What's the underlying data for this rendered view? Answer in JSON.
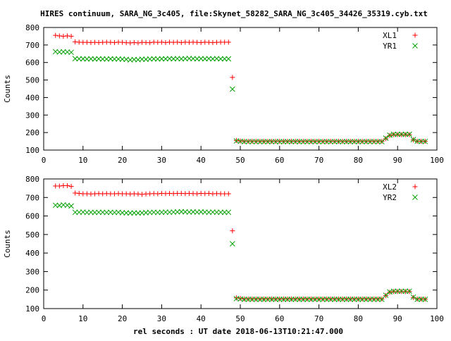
{
  "page": {
    "title": "HIRES continuum, SARA_NG_3c405, file:Skynet_58282_SARA_NG_3c405_34426_35319.cyb.txt",
    "xlabel": "rel seconds : UT date 2018-06-13T10:21:47.000"
  },
  "colors": {
    "red": "#ff0000",
    "green": "#00a000",
    "axis": "#000000"
  },
  "chart_data": [
    {
      "type": "scatter",
      "ylabel": "Counts",
      "xlim": [
        0,
        100
      ],
      "ylim": [
        100,
        800
      ],
      "xticks": [
        0,
        10,
        20,
        30,
        40,
        50,
        60,
        70,
        80,
        90,
        100
      ],
      "yticks": [
        100,
        200,
        300,
        400,
        500,
        600,
        700,
        800
      ],
      "legend_position": "top-right",
      "series": [
        {
          "name": "XL1",
          "marker": "plus",
          "color": "#ff0000",
          "x": [
            3,
            4,
            5,
            6,
            7,
            8,
            9,
            10,
            11,
            12,
            13,
            14,
            15,
            16,
            17,
            18,
            19,
            20,
            21,
            22,
            23,
            24,
            25,
            26,
            27,
            28,
            29,
            30,
            31,
            32,
            33,
            34,
            35,
            36,
            37,
            38,
            39,
            40,
            41,
            42,
            43,
            44,
            45,
            46,
            47,
            48,
            49,
            50,
            51,
            52,
            53,
            54,
            55,
            56,
            57,
            58,
            59,
            60,
            61,
            62,
            63,
            64,
            65,
            66,
            67,
            68,
            69,
            70,
            71,
            72,
            73,
            74,
            75,
            76,
            77,
            78,
            79,
            80,
            81,
            82,
            83,
            84,
            85,
            86,
            87,
            88,
            89,
            90,
            91,
            92,
            93,
            94,
            95,
            96,
            97
          ],
          "y": [
            755,
            752,
            750,
            752,
            750,
            718,
            716,
            715,
            715,
            714,
            715,
            714,
            715,
            716,
            715,
            714,
            716,
            715,
            713,
            712,
            714,
            712,
            715,
            714,
            713,
            716,
            715,
            716,
            714,
            716,
            715,
            716,
            714,
            716,
            715,
            716,
            715,
            714,
            716,
            715,
            714,
            715,
            716,
            716,
            716,
            515,
            155,
            152,
            150,
            150,
            150,
            150,
            150,
            150,
            150,
            150,
            150,
            150,
            150,
            150,
            150,
            150,
            150,
            150,
            150,
            150,
            150,
            150,
            150,
            150,
            150,
            150,
            150,
            150,
            150,
            150,
            150,
            150,
            150,
            150,
            150,
            150,
            150,
            150,
            165,
            183,
            188,
            188,
            188,
            188,
            188,
            158,
            150,
            150,
            150
          ]
        },
        {
          "name": "YR1",
          "marker": "cross",
          "color": "#00a000",
          "x": [
            3,
            4,
            5,
            6,
            7,
            8,
            9,
            10,
            11,
            12,
            13,
            14,
            15,
            16,
            17,
            18,
            19,
            20,
            21,
            22,
            23,
            24,
            25,
            26,
            27,
            28,
            29,
            30,
            31,
            32,
            33,
            34,
            35,
            36,
            37,
            38,
            39,
            40,
            41,
            42,
            43,
            44,
            45,
            46,
            47,
            48,
            49,
            50,
            51,
            52,
            53,
            54,
            55,
            56,
            57,
            58,
            59,
            60,
            61,
            62,
            63,
            64,
            65,
            66,
            67,
            68,
            69,
            70,
            71,
            72,
            73,
            74,
            75,
            76,
            77,
            78,
            79,
            80,
            81,
            82,
            83,
            84,
            85,
            86,
            87,
            88,
            89,
            90,
            91,
            92,
            93,
            94,
            95,
            96,
            97
          ],
          "y": [
            662,
            660,
            661,
            660,
            658,
            622,
            621,
            621,
            620,
            621,
            620,
            621,
            620,
            620,
            621,
            620,
            620,
            619,
            618,
            615,
            617,
            616,
            619,
            618,
            620,
            621,
            620,
            621,
            621,
            622,
            621,
            622,
            621,
            622,
            623,
            622,
            621,
            622,
            621,
            622,
            621,
            622,
            621,
            621,
            621,
            448,
            152,
            150,
            148,
            148,
            148,
            148,
            148,
            148,
            148,
            148,
            148,
            148,
            148,
            148,
            148,
            148,
            148,
            148,
            148,
            148,
            148,
            148,
            148,
            148,
            148,
            148,
            148,
            148,
            148,
            148,
            148,
            148,
            148,
            148,
            148,
            148,
            148,
            148,
            168,
            185,
            190,
            190,
            190,
            190,
            190,
            160,
            150,
            149,
            149
          ]
        }
      ]
    },
    {
      "type": "scatter",
      "ylabel": "Counts",
      "xlim": [
        0,
        100
      ],
      "ylim": [
        100,
        800
      ],
      "xticks": [
        0,
        10,
        20,
        30,
        40,
        50,
        60,
        70,
        80,
        90,
        100
      ],
      "yticks": [
        100,
        200,
        300,
        400,
        500,
        600,
        700,
        800
      ],
      "legend_position": "top-right",
      "series": [
        {
          "name": "XL2",
          "marker": "plus",
          "color": "#ff0000",
          "x": [
            3,
            4,
            5,
            6,
            7,
            8,
            9,
            10,
            11,
            12,
            13,
            14,
            15,
            16,
            17,
            18,
            19,
            20,
            21,
            22,
            23,
            24,
            25,
            26,
            27,
            28,
            29,
            30,
            31,
            32,
            33,
            34,
            35,
            36,
            37,
            38,
            39,
            40,
            41,
            42,
            43,
            44,
            45,
            46,
            47,
            48,
            49,
            50,
            51,
            52,
            53,
            54,
            55,
            56,
            57,
            58,
            59,
            60,
            61,
            62,
            63,
            64,
            65,
            66,
            67,
            68,
            69,
            70,
            71,
            72,
            73,
            74,
            75,
            76,
            77,
            78,
            79,
            80,
            81,
            82,
            83,
            84,
            85,
            86,
            87,
            88,
            89,
            90,
            91,
            92,
            93,
            94,
            95,
            96,
            97
          ],
          "y": [
            762,
            762,
            764,
            764,
            760,
            724,
            722,
            720,
            720,
            719,
            720,
            721,
            720,
            721,
            720,
            720,
            721,
            720,
            720,
            719,
            720,
            719,
            717,
            719,
            720,
            721,
            720,
            722,
            721,
            722,
            721,
            722,
            722,
            721,
            722,
            721,
            720,
            722,
            721,
            722,
            720,
            721,
            720,
            720,
            720,
            520,
            158,
            155,
            152,
            152,
            152,
            152,
            152,
            152,
            152,
            152,
            152,
            152,
            152,
            152,
            152,
            152,
            152,
            152,
            152,
            152,
            152,
            152,
            152,
            152,
            152,
            152,
            152,
            152,
            152,
            152,
            152,
            152,
            152,
            152,
            152,
            152,
            152,
            152,
            170,
            188,
            192,
            192,
            192,
            192,
            192,
            160,
            152,
            151,
            151
          ]
        },
        {
          "name": "YR2",
          "marker": "cross",
          "color": "#00a000",
          "x": [
            3,
            4,
            5,
            6,
            7,
            8,
            9,
            10,
            11,
            12,
            13,
            14,
            15,
            16,
            17,
            18,
            19,
            20,
            21,
            22,
            23,
            24,
            25,
            26,
            27,
            28,
            29,
            30,
            31,
            32,
            33,
            34,
            35,
            36,
            37,
            38,
            39,
            40,
            41,
            42,
            43,
            44,
            45,
            46,
            47,
            48,
            49,
            50,
            51,
            52,
            53,
            54,
            55,
            56,
            57,
            58,
            59,
            60,
            61,
            62,
            63,
            64,
            65,
            66,
            67,
            68,
            69,
            70,
            71,
            72,
            73,
            74,
            75,
            76,
            77,
            78,
            79,
            80,
            81,
            82,
            83,
            84,
            85,
            86,
            87,
            88,
            89,
            90,
            91,
            92,
            93,
            94,
            95,
            96,
            97
          ],
          "y": [
            658,
            657,
            660,
            658,
            654,
            620,
            620,
            621,
            619,
            620,
            619,
            620,
            620,
            619,
            620,
            619,
            620,
            618,
            617,
            616,
            617,
            616,
            617,
            618,
            619,
            620,
            619,
            620,
            621,
            620,
            621,
            622,
            623,
            622,
            621,
            622,
            621,
            622,
            621,
            620,
            621,
            620,
            620,
            620,
            620,
            450,
            154,
            152,
            150,
            150,
            150,
            150,
            150,
            150,
            150,
            150,
            150,
            150,
            150,
            150,
            150,
            150,
            150,
            150,
            150,
            150,
            150,
            150,
            150,
            150,
            150,
            150,
            150,
            150,
            150,
            150,
            150,
            150,
            150,
            150,
            150,
            150,
            150,
            150,
            172,
            190,
            194,
            194,
            194,
            194,
            194,
            162,
            150,
            150,
            150
          ]
        }
      ]
    }
  ]
}
